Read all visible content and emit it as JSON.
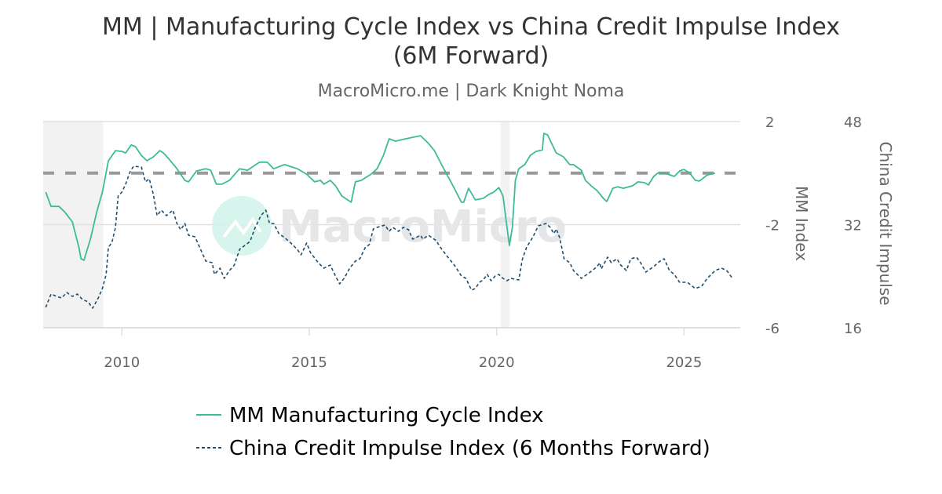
{
  "chart_data": {
    "type": "line",
    "title": "MM | Manufacturing Cycle Index vs China Credit Impulse Index",
    "title_line2": "(6M Forward)",
    "subtitle": "MacroMicro.me | Dark Knight Noma",
    "watermark": "MacroMicro",
    "xlim": [
      2007.9,
      2026.5
    ],
    "x_ticks": [
      "2010",
      "2015",
      "2020",
      "2025"
    ],
    "left_axis": {
      "label": "MM Index",
      "ylim": [
        -6,
        2
      ],
      "ticks": [
        "2",
        "-2",
        "-6"
      ]
    },
    "right_axis": {
      "label": "China Credit Impulse",
      "ylim": [
        16,
        48
      ],
      "ticks": [
        "48",
        "32",
        "16"
      ]
    },
    "reference_line": {
      "axis": "left",
      "value": 0,
      "style": "dashed",
      "color": "#999999"
    },
    "shaded_periods": [
      [
        2007.9,
        2009.5
      ],
      [
        2020.1,
        2020.35
      ]
    ],
    "grid": true,
    "legend_position": "bottom",
    "series": [
      {
        "name": "MM Manufacturing Cycle Index",
        "axis": "left",
        "color": "#3dbb98",
        "style": "solid",
        "points": [
          [
            2007.97,
            -0.74
          ],
          [
            2008.11,
            -1.29
          ],
          [
            2008.32,
            -1.29
          ],
          [
            2008.47,
            -1.5
          ],
          [
            2008.68,
            -1.89
          ],
          [
            2008.85,
            -2.87
          ],
          [
            2008.91,
            -3.32
          ],
          [
            2008.99,
            -3.38
          ],
          [
            2009.16,
            -2.56
          ],
          [
            2009.33,
            -1.5
          ],
          [
            2009.48,
            -0.74
          ],
          [
            2009.64,
            0.48
          ],
          [
            2009.83,
            0.87
          ],
          [
            2010.0,
            0.84
          ],
          [
            2010.1,
            0.78
          ],
          [
            2010.25,
            1.09
          ],
          [
            2010.36,
            1.03
          ],
          [
            2010.52,
            0.69
          ],
          [
            2010.67,
            0.48
          ],
          [
            2010.84,
            0.63
          ],
          [
            2011.01,
            0.87
          ],
          [
            2011.11,
            0.78
          ],
          [
            2011.26,
            0.54
          ],
          [
            2011.47,
            0.17
          ],
          [
            2011.68,
            -0.28
          ],
          [
            2011.78,
            -0.34
          ],
          [
            2011.99,
            0.08
          ],
          [
            2012.24,
            0.17
          ],
          [
            2012.37,
            0.11
          ],
          [
            2012.52,
            -0.43
          ],
          [
            2012.66,
            -0.43
          ],
          [
            2012.87,
            -0.28
          ],
          [
            2013.14,
            0.17
          ],
          [
            2013.35,
            0.11
          ],
          [
            2013.67,
            0.42
          ],
          [
            2013.88,
            0.42
          ],
          [
            2014.05,
            0.17
          ],
          [
            2014.34,
            0.33
          ],
          [
            2014.68,
            0.17
          ],
          [
            2014.93,
            -0.04
          ],
          [
            2015.14,
            -0.34
          ],
          [
            2015.3,
            -0.28
          ],
          [
            2015.39,
            -0.43
          ],
          [
            2015.56,
            -0.28
          ],
          [
            2015.7,
            -0.49
          ],
          [
            2015.87,
            -0.89
          ],
          [
            2016.12,
            -1.13
          ],
          [
            2016.23,
            -0.34
          ],
          [
            2016.39,
            -0.28
          ],
          [
            2016.65,
            -0.04
          ],
          [
            2016.81,
            0.17
          ],
          [
            2016.98,
            0.69
          ],
          [
            2017.13,
            1.33
          ],
          [
            2017.3,
            1.24
          ],
          [
            2017.48,
            1.3
          ],
          [
            2017.76,
            1.39
          ],
          [
            2017.97,
            1.45
          ],
          [
            2018.18,
            1.15
          ],
          [
            2018.34,
            0.87
          ],
          [
            2018.53,
            0.33
          ],
          [
            2018.7,
            -0.13
          ],
          [
            2018.87,
            -0.59
          ],
          [
            2019.06,
            -1.13
          ],
          [
            2019.12,
            -1.13
          ],
          [
            2019.25,
            -0.59
          ],
          [
            2019.43,
            -1.04
          ],
          [
            2019.64,
            -0.98
          ],
          [
            2019.79,
            -0.83
          ],
          [
            2019.92,
            -0.74
          ],
          [
            2020.06,
            -0.56
          ],
          [
            2020.17,
            -0.89
          ],
          [
            2020.25,
            -1.8
          ],
          [
            2020.34,
            -2.81
          ],
          [
            2020.42,
            -2.11
          ],
          [
            2020.5,
            -0.28
          ],
          [
            2020.59,
            0.17
          ],
          [
            2020.75,
            0.33
          ],
          [
            2020.9,
            0.69
          ],
          [
            2021.05,
            0.84
          ],
          [
            2021.22,
            0.9
          ],
          [
            2021.26,
            1.54
          ],
          [
            2021.36,
            1.48
          ],
          [
            2021.59,
            0.78
          ],
          [
            2021.78,
            0.63
          ],
          [
            2021.95,
            0.33
          ],
          [
            2022.05,
            0.33
          ],
          [
            2022.26,
            0.11
          ],
          [
            2022.37,
            -0.28
          ],
          [
            2022.52,
            -0.49
          ],
          [
            2022.68,
            -0.68
          ],
          [
            2022.85,
            -0.98
          ],
          [
            2022.94,
            -1.1
          ],
          [
            2023.1,
            -0.59
          ],
          [
            2023.23,
            -0.53
          ],
          [
            2023.38,
            -0.59
          ],
          [
            2023.63,
            -0.49
          ],
          [
            2023.77,
            -0.34
          ],
          [
            2023.94,
            -0.37
          ],
          [
            2024.05,
            -0.46
          ],
          [
            2024.19,
            -0.13
          ],
          [
            2024.32,
            0.02
          ],
          [
            2024.57,
            -0.04
          ],
          [
            2024.74,
            -0.13
          ],
          [
            2024.88,
            0.08
          ],
          [
            2024.99,
            0.14
          ],
          [
            2025.14,
            0.02
          ],
          [
            2025.3,
            -0.28
          ],
          [
            2025.41,
            -0.31
          ],
          [
            2025.62,
            -0.07
          ],
          [
            2025.83,
            0.0
          ]
        ]
      },
      {
        "name": "China Credit Impulse Index (6 Months Forward)",
        "axis": "right",
        "color": "#1f4e6e",
        "style": "dashed",
        "points": [
          [
            2007.97,
            19.16
          ],
          [
            2008.11,
            21.23
          ],
          [
            2008.26,
            20.87
          ],
          [
            2008.39,
            20.62
          ],
          [
            2008.53,
            21.48
          ],
          [
            2008.68,
            20.87
          ],
          [
            2008.81,
            21.23
          ],
          [
            2008.95,
            20.38
          ],
          [
            2009.1,
            20.02
          ],
          [
            2009.22,
            19.04
          ],
          [
            2009.37,
            20.62
          ],
          [
            2009.48,
            22.08
          ],
          [
            2009.58,
            24.27
          ],
          [
            2009.64,
            28.53
          ],
          [
            2009.73,
            29.14
          ],
          [
            2009.83,
            31.57
          ],
          [
            2009.9,
            36.44
          ],
          [
            2010.0,
            37.05
          ],
          [
            2010.1,
            38.27
          ],
          [
            2010.21,
            40.09
          ],
          [
            2010.31,
            41.06
          ],
          [
            2010.52,
            40.94
          ],
          [
            2010.63,
            38.63
          ],
          [
            2010.73,
            39.12
          ],
          [
            2010.84,
            36.68
          ],
          [
            2010.94,
            33.4
          ],
          [
            2011.05,
            34.25
          ],
          [
            2011.19,
            33.4
          ],
          [
            2011.36,
            34.25
          ],
          [
            2011.47,
            32.18
          ],
          [
            2011.57,
            31.21
          ],
          [
            2011.68,
            32.18
          ],
          [
            2011.78,
            30.36
          ],
          [
            2011.95,
            30.11
          ],
          [
            2012.1,
            28.17
          ],
          [
            2012.24,
            26.34
          ],
          [
            2012.41,
            26.1
          ],
          [
            2012.47,
            24.27
          ],
          [
            2012.62,
            25.25
          ],
          [
            2012.73,
            23.67
          ],
          [
            2012.87,
            24.88
          ],
          [
            2013.0,
            25.73
          ],
          [
            2013.14,
            28.17
          ],
          [
            2013.42,
            29.38
          ],
          [
            2013.56,
            31.57
          ],
          [
            2013.71,
            33.4
          ],
          [
            2013.84,
            34.25
          ],
          [
            2013.94,
            32.18
          ],
          [
            2014.05,
            32.18
          ],
          [
            2014.19,
            30.6
          ],
          [
            2014.34,
            29.99
          ],
          [
            2014.51,
            29.14
          ],
          [
            2014.68,
            28.17
          ],
          [
            2014.78,
            27.32
          ],
          [
            2014.93,
            29.14
          ],
          [
            2015.03,
            27.68
          ],
          [
            2015.24,
            26.1
          ],
          [
            2015.39,
            25.25
          ],
          [
            2015.56,
            25.73
          ],
          [
            2015.7,
            24.03
          ],
          [
            2015.81,
            22.81
          ],
          [
            2015.93,
            23.67
          ],
          [
            2016.08,
            25.25
          ],
          [
            2016.23,
            26.34
          ],
          [
            2016.35,
            26.71
          ],
          [
            2016.5,
            28.53
          ],
          [
            2016.6,
            28.9
          ],
          [
            2016.71,
            31.33
          ],
          [
            2016.81,
            31.57
          ],
          [
            2017.02,
            31.94
          ],
          [
            2017.13,
            30.97
          ],
          [
            2017.23,
            31.57
          ],
          [
            2017.38,
            30.97
          ],
          [
            2017.51,
            31.57
          ],
          [
            2017.65,
            31.21
          ],
          [
            2017.76,
            29.75
          ],
          [
            2017.97,
            30.36
          ],
          [
            2018.03,
            29.75
          ],
          [
            2018.18,
            30.36
          ],
          [
            2018.39,
            29.51
          ],
          [
            2018.49,
            28.53
          ],
          [
            2018.7,
            26.95
          ],
          [
            2018.87,
            25.73
          ],
          [
            2019.06,
            24.03
          ],
          [
            2019.18,
            23.67
          ],
          [
            2019.33,
            21.84
          ],
          [
            2019.43,
            22.08
          ],
          [
            2019.54,
            23.06
          ],
          [
            2019.64,
            23.42
          ],
          [
            2019.75,
            24.27
          ],
          [
            2019.85,
            23.3
          ],
          [
            2019.96,
            24.03
          ],
          [
            2020.06,
            24.27
          ],
          [
            2020.17,
            23.67
          ],
          [
            2020.27,
            23.3
          ],
          [
            2020.38,
            23.67
          ],
          [
            2020.59,
            23.42
          ],
          [
            2020.69,
            26.71
          ],
          [
            2020.8,
            28.53
          ],
          [
            2020.96,
            29.99
          ],
          [
            2021.11,
            31.82
          ],
          [
            2021.32,
            32.18
          ],
          [
            2021.43,
            31.57
          ],
          [
            2021.53,
            30.6
          ],
          [
            2021.59,
            31.33
          ],
          [
            2021.68,
            29.99
          ],
          [
            2021.8,
            26.71
          ],
          [
            2021.95,
            26.1
          ],
          [
            2022.05,
            24.88
          ],
          [
            2022.26,
            23.67
          ],
          [
            2022.47,
            24.52
          ],
          [
            2022.68,
            25.49
          ],
          [
            2022.75,
            26.1
          ],
          [
            2022.79,
            25.13
          ],
          [
            2022.96,
            26.95
          ],
          [
            2023.06,
            26.1
          ],
          [
            2023.21,
            26.71
          ],
          [
            2023.31,
            25.73
          ],
          [
            2023.46,
            24.88
          ],
          [
            2023.58,
            26.71
          ],
          [
            2023.73,
            26.95
          ],
          [
            2023.84,
            26.1
          ],
          [
            2023.98,
            24.64
          ],
          [
            2024.19,
            25.49
          ],
          [
            2024.36,
            26.34
          ],
          [
            2024.47,
            26.71
          ],
          [
            2024.61,
            24.88
          ],
          [
            2024.74,
            24.27
          ],
          [
            2024.88,
            23.06
          ],
          [
            2025.09,
            23.06
          ],
          [
            2025.3,
            22.08
          ],
          [
            2025.47,
            22.45
          ],
          [
            2025.62,
            23.67
          ],
          [
            2025.83,
            24.88
          ],
          [
            2026.0,
            25.25
          ],
          [
            2026.14,
            24.88
          ],
          [
            2026.29,
            23.67
          ]
        ]
      }
    ]
  }
}
